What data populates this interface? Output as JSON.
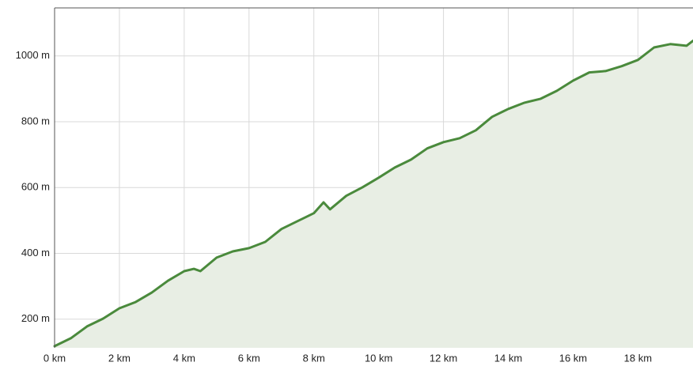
{
  "chart_data": {
    "type": "area",
    "x": [
      0,
      0.5,
      1,
      1.5,
      2,
      2.5,
      3,
      3.5,
      4,
      4.3,
      4.5,
      5,
      5.5,
      6,
      6.5,
      7,
      7.5,
      8,
      8.3,
      8.5,
      9,
      9.5,
      10,
      10.5,
      11,
      11.5,
      12,
      12.5,
      13,
      13.5,
      14,
      14.5,
      15,
      15.5,
      16,
      16.5,
      17,
      17.5,
      18,
      18.5,
      19,
      19.5,
      19.7
    ],
    "values": [
      118,
      142,
      178,
      202,
      233,
      252,
      281,
      317,
      346,
      353,
      346,
      387,
      406,
      416,
      435,
      474,
      498,
      522,
      555,
      534,
      575,
      601,
      630,
      661,
      685,
      719,
      738,
      750,
      774,
      815,
      839,
      858,
      870,
      894,
      925,
      950,
      954,
      969,
      988,
      1026,
      1036,
      1031,
      1046
    ],
    "color": "#4a8a3c",
    "fill": "#e8eee4",
    "xlim": [
      0,
      19.7
    ],
    "ylim": [
      113,
      1146
    ],
    "xticks": [
      {
        "value": 0,
        "label": "0 km"
      },
      {
        "value": 2,
        "label": "2 km"
      },
      {
        "value": 4,
        "label": "4 km"
      },
      {
        "value": 6,
        "label": "6 km"
      },
      {
        "value": 8,
        "label": "8 km"
      },
      {
        "value": 10,
        "label": "10 km"
      },
      {
        "value": 12,
        "label": "12 km"
      },
      {
        "value": 14,
        "label": "14 km"
      },
      {
        "value": 16,
        "label": "16 km"
      },
      {
        "value": 18,
        "label": "18 km"
      }
    ],
    "yticks": [
      {
        "value": 200,
        "label": "200 m"
      },
      {
        "value": 400,
        "label": "400 m"
      },
      {
        "value": 600,
        "label": "600 m"
      },
      {
        "value": 800,
        "label": "800 m"
      },
      {
        "value": 1000,
        "label": "1000 m"
      }
    ],
    "grid": true
  }
}
